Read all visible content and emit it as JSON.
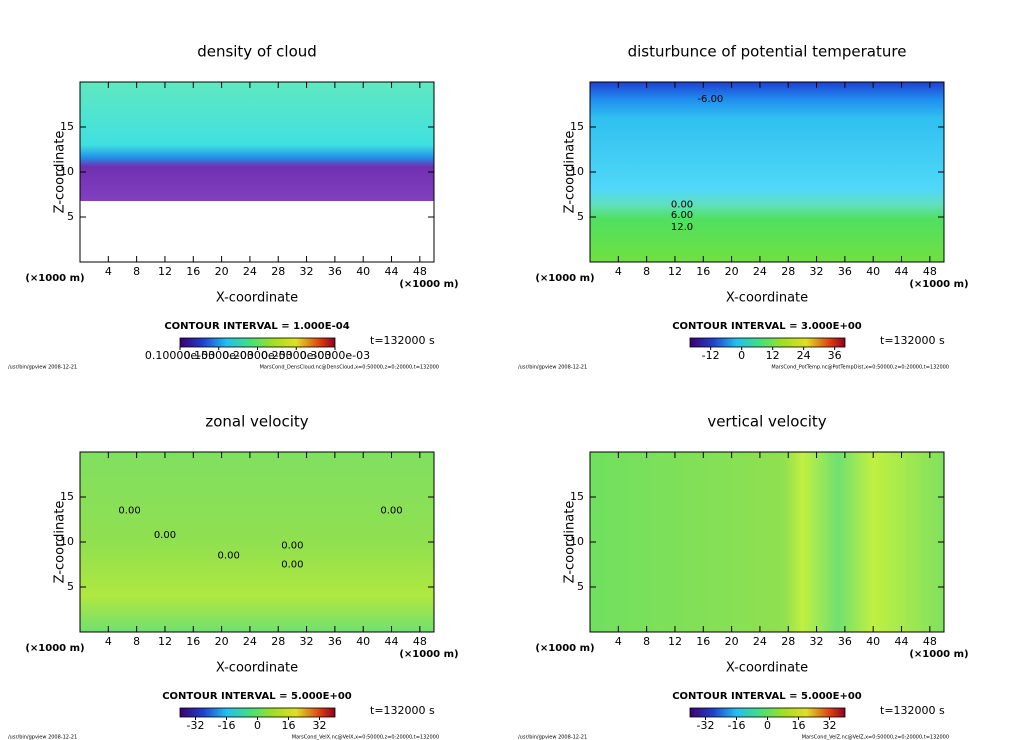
{
  "chart_data": [
    {
      "type": "contour",
      "title": "density of cloud",
      "xlabel": "X-coordinate",
      "ylabel": "Z-coordinate",
      "x_unit": "(×1000 m)",
      "xlim": [
        0,
        50
      ],
      "xticks": [
        4,
        8,
        12,
        16,
        20,
        24,
        28,
        32,
        36,
        40,
        44,
        48
      ],
      "ylim": [
        0,
        20
      ],
      "yticks": [
        5,
        10,
        15
      ],
      "contour_interval": "CONTOUR INTERVAL = 1.000E-04",
      "time_label": "t=132000 s",
      "colorbar": {
        "lim": [
          0.0001,
          0.0003
        ],
        "ticks": [
          {
            "value": 0.0001,
            "label": "0.10000e-03"
          },
          {
            "value": 0.00015,
            "label": "0.15000e-03"
          },
          {
            "value": 0.0002,
            "label": "0.20000e-03"
          },
          {
            "value": 0.00025,
            "label": "0.25000e-03"
          },
          {
            "value": 0.0003,
            "label": "0.30000e-03"
          }
        ]
      },
      "footer_left": "/usr/bin/gpview   2008-12-21",
      "footer_right": "MarsCond_DensCloud.nc@DensCloud,x=0:50000,z=0:20000,t=132000",
      "annotations": []
    },
    {
      "type": "contour",
      "title": "disturbunce of potential temperature",
      "xlabel": "X-coordinate",
      "ylabel": "Z-coordinate",
      "x_unit": "(×1000 m)",
      "xlim": [
        0,
        50
      ],
      "xticks": [
        4,
        8,
        12,
        16,
        20,
        24,
        28,
        32,
        36,
        40,
        44,
        48
      ],
      "ylim": [
        0,
        20
      ],
      "yticks": [
        5,
        10,
        15
      ],
      "contour_interval": "CONTOUR INTERVAL = 3.000E+00",
      "time_label": "t=132000 s",
      "colorbar": {
        "lim": [
          -20,
          40
        ],
        "ticks": [
          -12,
          0,
          12,
          24,
          36
        ]
      },
      "footer_left": "/usr/bin/gpview   2008-12-21",
      "footer_right": "MarsCond_PotTemp.nc@PotTempDist,x=0:50000,z=0:20000,t=132000",
      "annotations": [
        {
          "text": "-6.00",
          "x": 17,
          "y": 18.1
        },
        {
          "text": "0.00",
          "x": 13,
          "y": 6.4
        },
        {
          "text": "6.00",
          "x": 13,
          "y": 5.2
        },
        {
          "text": "12.0",
          "x": 13,
          "y": 3.9
        }
      ]
    },
    {
      "type": "contour",
      "title": "zonal velocity",
      "xlabel": "X-coordinate",
      "ylabel": "Z-coordinate",
      "x_unit": "(×1000 m)",
      "xlim": [
        0,
        50
      ],
      "xticks": [
        4,
        8,
        12,
        16,
        20,
        24,
        28,
        32,
        36,
        40,
        44,
        48
      ],
      "ylim": [
        0,
        20
      ],
      "yticks": [
        5,
        10,
        15
      ],
      "contour_interval": "CONTOUR INTERVAL = 5.000E+00",
      "time_label": "t=132000 s",
      "colorbar": {
        "lim": [
          -40,
          40
        ],
        "ticks": [
          -32,
          -16,
          0,
          16,
          32
        ]
      },
      "footer_left": "/usr/bin/gpview   2008-12-21",
      "footer_right": "MarsCond_VelX.nc@VelX,x=0:50000,z=0:20000,t=132000",
      "annotations": [
        {
          "text": "0.00",
          "x": 7,
          "y": 13.5
        },
        {
          "text": "0.00",
          "x": 12,
          "y": 10.8
        },
        {
          "text": "0.00",
          "x": 21,
          "y": 8.5
        },
        {
          "text": "0.00",
          "x": 30,
          "y": 9.6
        },
        {
          "text": "0.00",
          "x": 30,
          "y": 7.5
        },
        {
          "text": "0.00",
          "x": 44,
          "y": 13.5
        }
      ]
    },
    {
      "type": "contour",
      "title": "vertical velocity",
      "xlabel": "X-coordinate",
      "ylabel": "Z-coordinate",
      "x_unit": "(×1000 m)",
      "xlim": [
        0,
        50
      ],
      "xticks": [
        4,
        8,
        12,
        16,
        20,
        24,
        28,
        32,
        36,
        40,
        44,
        48
      ],
      "ylim": [
        0,
        20
      ],
      "yticks": [
        5,
        10,
        15
      ],
      "contour_interval": "CONTOUR INTERVAL = 5.000E+00",
      "time_label": "t=132000 s",
      "colorbar": {
        "lim": [
          -40,
          40
        ],
        "ticks": [
          -32,
          -16,
          0,
          16,
          32
        ]
      },
      "footer_left": "/usr/bin/gpview   2008-12-21",
      "footer_right": "MarsCond_VelZ.nc@VelZ,x=0:50000,z=0:20000,t=132000",
      "annotations": []
    }
  ]
}
